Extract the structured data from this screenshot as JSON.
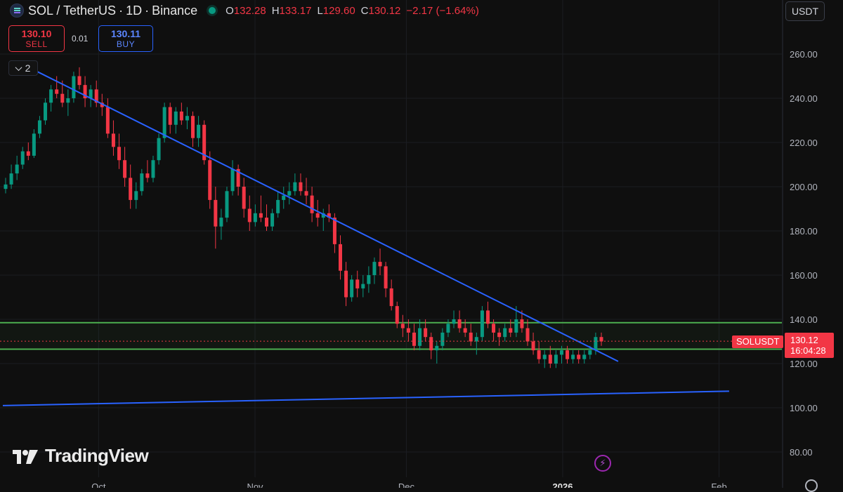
{
  "header": {
    "symbol": "SOL / TetherUS",
    "timeframe": "1D",
    "exchange": "Binance",
    "open_label": "O",
    "open": "132.28",
    "high_label": "H",
    "high": "133.17",
    "low_label": "L",
    "low": "129.60",
    "close_label": "C",
    "close": "130.12",
    "change": "−2.17 (−1.64%)"
  },
  "trade": {
    "sell_price": "130.10",
    "sell_label": "SELL",
    "spread": "0.01",
    "buy_price": "130.11",
    "buy_label": "BUY"
  },
  "indicators_toggle": {
    "count": "2"
  },
  "currency": "USDT",
  "price_tag": {
    "symbol": "SOLUSDT",
    "price": "130.12",
    "countdown": "16:04:28"
  },
  "brand": {
    "name": "TradingView"
  },
  "colors": {
    "background": "#0f0f0f",
    "up": "#089981",
    "down": "#f23645",
    "trendline": "#2962ff",
    "zone": "#4caf50",
    "accent_purple": "#9c27b0"
  },
  "chart_data": {
    "type": "candlestick",
    "yaxis": {
      "ticks": [
        80,
        100,
        120,
        140,
        160,
        180,
        200,
        220,
        240,
        260
      ],
      "labels": [
        "80.00",
        "100.00",
        "120.00",
        "140.00",
        "160.00",
        "180.00",
        "200.00",
        "220.00",
        "240.00",
        "260.00"
      ]
    },
    "xaxis": {
      "labels": [
        "Oct",
        "Nov",
        "Dec",
        "2026",
        "Feb"
      ],
      "dates": [
        "2025-10-01",
        "2025-11-01",
        "2025-12-01",
        "2026-01-01",
        "2026-02-01"
      ]
    },
    "last_price": 130.12,
    "candles_ohlc": [
      [
        199,
        204,
        197,
        201
      ],
      [
        201,
        210,
        199,
        206
      ],
      [
        206,
        214,
        203,
        210
      ],
      [
        210,
        218,
        208,
        216
      ],
      [
        216,
        220,
        212,
        214
      ],
      [
        214,
        226,
        213,
        224
      ],
      [
        224,
        232,
        222,
        230
      ],
      [
        230,
        240,
        228,
        238
      ],
      [
        238,
        246,
        234,
        244
      ],
      [
        244,
        250,
        240,
        242
      ],
      [
        242,
        248,
        236,
        238
      ],
      [
        238,
        244,
        232,
        240
      ],
      [
        240,
        252,
        238,
        250
      ],
      [
        250,
        254,
        244,
        246
      ],
      [
        246,
        250,
        236,
        240
      ],
      [
        240,
        246,
        236,
        244
      ],
      [
        244,
        248,
        236,
        238
      ],
      [
        238,
        242,
        232,
        236
      ],
      [
        236,
        240,
        222,
        224
      ],
      [
        224,
        230,
        214,
        218
      ],
      [
        218,
        224,
        208,
        212
      ],
      [
        212,
        218,
        200,
        204
      ],
      [
        204,
        210,
        190,
        194
      ],
      [
        194,
        202,
        190,
        198
      ],
      [
        198,
        208,
        196,
        206
      ],
      [
        206,
        212,
        202,
        204
      ],
      [
        204,
        214,
        202,
        212
      ],
      [
        212,
        224,
        210,
        222
      ],
      [
        222,
        238,
        220,
        236
      ],
      [
        236,
        238,
        224,
        228
      ],
      [
        228,
        236,
        224,
        234
      ],
      [
        234,
        238,
        228,
        230
      ],
      [
        230,
        236,
        226,
        232
      ],
      [
        232,
        234,
        218,
        222
      ],
      [
        222,
        232,
        218,
        228
      ],
      [
        228,
        230,
        210,
        212
      ],
      [
        212,
        216,
        190,
        194
      ],
      [
        194,
        200,
        172,
        182
      ],
      [
        182,
        190,
        176,
        186
      ],
      [
        186,
        200,
        184,
        198
      ],
      [
        198,
        212,
        196,
        208
      ],
      [
        208,
        210,
        196,
        200
      ],
      [
        200,
        204,
        186,
        190
      ],
      [
        190,
        196,
        180,
        184
      ],
      [
        184,
        192,
        182,
        188
      ],
      [
        188,
        196,
        184,
        186
      ],
      [
        186,
        192,
        180,
        182
      ],
      [
        182,
        190,
        180,
        188
      ],
      [
        188,
        198,
        186,
        194
      ],
      [
        194,
        200,
        190,
        196
      ],
      [
        196,
        202,
        192,
        198
      ],
      [
        198,
        206,
        196,
        202
      ],
      [
        202,
        206,
        196,
        198
      ],
      [
        198,
        204,
        192,
        196
      ],
      [
        196,
        200,
        184,
        188
      ],
      [
        188,
        194,
        182,
        186
      ],
      [
        186,
        190,
        180,
        188
      ],
      [
        188,
        192,
        184,
        186
      ],
      [
        186,
        188,
        170,
        174
      ],
      [
        174,
        178,
        158,
        162
      ],
      [
        162,
        166,
        146,
        150
      ],
      [
        150,
        160,
        148,
        158
      ],
      [
        158,
        162,
        150,
        154
      ],
      [
        154,
        160,
        150,
        156
      ],
      [
        156,
        164,
        152,
        160
      ],
      [
        160,
        168,
        156,
        166
      ],
      [
        166,
        172,
        160,
        164
      ],
      [
        164,
        166,
        150,
        154
      ],
      [
        154,
        158,
        144,
        146
      ],
      [
        146,
        148,
        136,
        138
      ],
      [
        138,
        142,
        132,
        136
      ],
      [
        136,
        140,
        130,
        134
      ],
      [
        134,
        138,
        126,
        128
      ],
      [
        128,
        140,
        126,
        136
      ],
      [
        136,
        140,
        130,
        132
      ],
      [
        132,
        134,
        122,
        126
      ],
      [
        126,
        130,
        120,
        128
      ],
      [
        128,
        136,
        126,
        134
      ],
      [
        134,
        140,
        132,
        138
      ],
      [
        138,
        144,
        136,
        140
      ],
      [
        140,
        144,
        134,
        136
      ],
      [
        136,
        140,
        132,
        134
      ],
      [
        134,
        138,
        128,
        130
      ],
      [
        130,
        134,
        124,
        132
      ],
      [
        132,
        146,
        130,
        144
      ],
      [
        144,
        148,
        136,
        138
      ],
      [
        138,
        140,
        130,
        134
      ],
      [
        134,
        136,
        128,
        132
      ],
      [
        132,
        138,
        130,
        136
      ],
      [
        136,
        140,
        132,
        134
      ],
      [
        134,
        146,
        132,
        140
      ],
      [
        140,
        144,
        134,
        136
      ],
      [
        136,
        140,
        128,
        130
      ],
      [
        130,
        134,
        124,
        126
      ],
      [
        126,
        130,
        120,
        122
      ],
      [
        122,
        126,
        118,
        124
      ],
      [
        124,
        128,
        118,
        120
      ],
      [
        120,
        126,
        118,
        124
      ],
      [
        124,
        128,
        120,
        126
      ],
      [
        126,
        128,
        120,
        122
      ],
      [
        122,
        126,
        120,
        124
      ],
      [
        124,
        126,
        120,
        122
      ],
      [
        122,
        126,
        120,
        124
      ],
      [
        124,
        128,
        122,
        126
      ],
      [
        126,
        134,
        124,
        132
      ],
      [
        132,
        134,
        128,
        130
      ]
    ],
    "trendlines": [
      {
        "name": "descending resistance",
        "from": {
          "date": "2025-09-18",
          "price": 253
        },
        "to": {
          "date": "2026-01-12",
          "price": 121
        }
      },
      {
        "name": "rising support",
        "from": {
          "date": "2025-09-12",
          "price": 101
        },
        "to": {
          "date": "2026-02-03",
          "price": 107.5
        }
      }
    ],
    "zones": [
      {
        "top": 138.5,
        "bottom": 126.5
      }
    ]
  }
}
